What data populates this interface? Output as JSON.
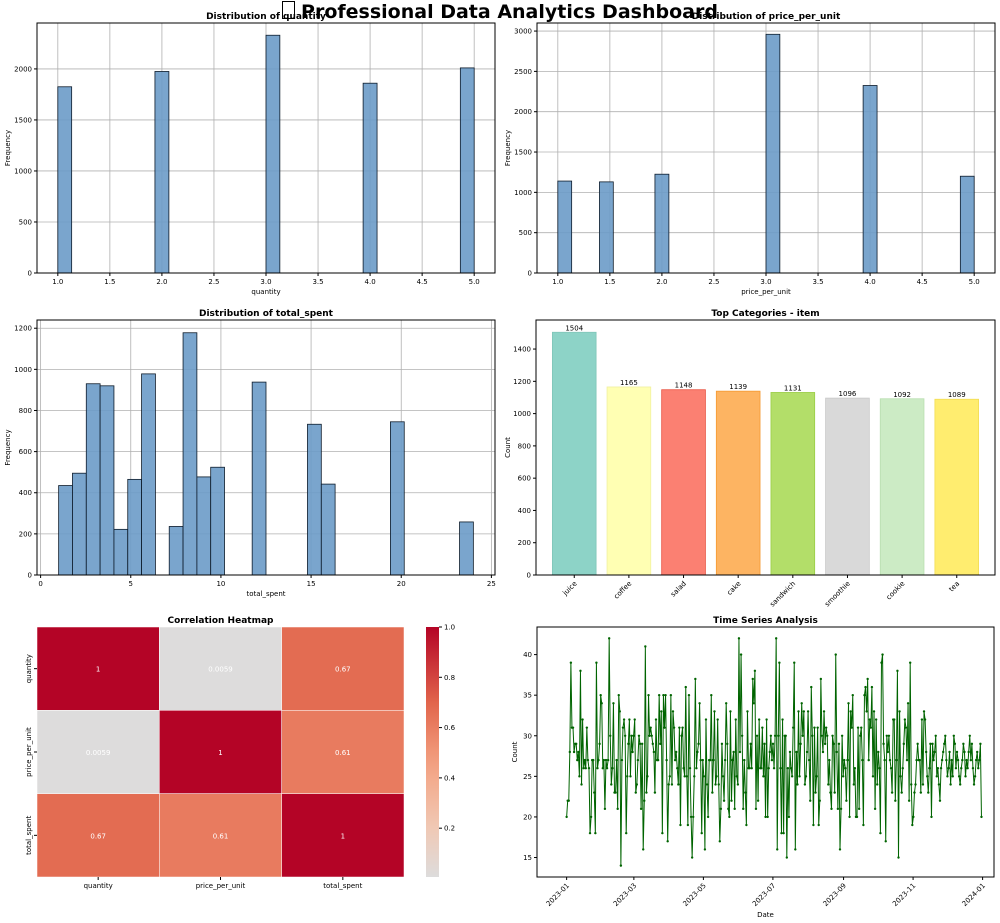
{
  "page": {
    "title": "Professional Data Analytics Dashboard",
    "title_icon": "missing-glyph-icon"
  },
  "chart_data": [
    {
      "id": "quantity-hist",
      "type": "bar",
      "subtype": "histogram",
      "title": "Distribution of quantity",
      "xlabel": "quantity",
      "ylabel": "Frequency",
      "xlim": [
        0.8,
        5.2
      ],
      "ylim": [
        0,
        2450
      ],
      "xticks": [
        1.0,
        1.5,
        2.0,
        2.5,
        3.0,
        3.5,
        4.0,
        4.5,
        5.0
      ],
      "xtick_labels": [
        "1.0",
        "1.5",
        "2.0",
        "2.5",
        "3.0",
        "3.5",
        "4.0",
        "4.5",
        "5.0"
      ],
      "yticks": [
        0,
        500,
        1000,
        1500,
        2000
      ],
      "grid": true,
      "bin_width": 0.1333,
      "bins": [
        {
          "x0": 1.0,
          "x1": 1.133,
          "value": 1825
        },
        {
          "x0": 1.933,
          "x1": 2.067,
          "value": 1975
        },
        {
          "x0": 3.0,
          "x1": 3.133,
          "value": 2330
        },
        {
          "x0": 3.933,
          "x1": 4.067,
          "value": 1860
        },
        {
          "x0": 4.867,
          "x1": 5.0,
          "value": 2010
        }
      ],
      "color": "#6b9bc8"
    },
    {
      "id": "price-hist",
      "type": "bar",
      "subtype": "histogram",
      "title": "Distribution of price_per_unit",
      "xlabel": "price_per_unit",
      "ylabel": "Frequency",
      "xlim": [
        0.8,
        5.2
      ],
      "ylim": [
        0,
        3100
      ],
      "xticks": [
        1.0,
        1.5,
        2.0,
        2.5,
        3.0,
        3.5,
        4.0,
        4.5,
        5.0
      ],
      "xtick_labels": [
        "1.0",
        "1.5",
        "2.0",
        "2.5",
        "3.0",
        "3.5",
        "4.0",
        "4.5",
        "5.0"
      ],
      "yticks": [
        0,
        500,
        1000,
        1500,
        2000,
        2500,
        3000
      ],
      "grid": true,
      "bins": [
        {
          "x0": 1.0,
          "x1": 1.133,
          "value": 1140
        },
        {
          "x0": 1.4,
          "x1": 1.533,
          "value": 1130
        },
        {
          "x0": 1.933,
          "x1": 2.067,
          "value": 1225
        },
        {
          "x0": 3.0,
          "x1": 3.133,
          "value": 2960
        },
        {
          "x0": 3.933,
          "x1": 4.067,
          "value": 2325
        },
        {
          "x0": 4.867,
          "x1": 5.0,
          "value": 1200
        }
      ],
      "color": "#6b9bc8"
    },
    {
      "id": "total-spent-hist",
      "type": "bar",
      "subtype": "histogram",
      "title": "Distribution of total_spent",
      "xlabel": "total_spent",
      "ylabel": "Frequency",
      "xlim": [
        -0.2,
        25.2
      ],
      "ylim": [
        0,
        1240
      ],
      "xticks": [
        0,
        5,
        10,
        15,
        20,
        25
      ],
      "xtick_labels": [
        "0",
        "5",
        "10",
        "15",
        "20",
        "25"
      ],
      "yticks": [
        0,
        200,
        400,
        600,
        800,
        1000,
        1200
      ],
      "grid": true,
      "bins": [
        {
          "x0": 1.0,
          "x1": 1.767,
          "value": 435
        },
        {
          "x0": 1.767,
          "x1": 2.533,
          "value": 495
        },
        {
          "x0": 2.533,
          "x1": 3.3,
          "value": 930
        },
        {
          "x0": 3.3,
          "x1": 4.067,
          "value": 920
        },
        {
          "x0": 4.067,
          "x1": 4.833,
          "value": 222
        },
        {
          "x0": 4.833,
          "x1": 5.6,
          "value": 465
        },
        {
          "x0": 5.6,
          "x1": 6.367,
          "value": 978
        },
        {
          "x0": 7.133,
          "x1": 7.9,
          "value": 236
        },
        {
          "x0": 7.9,
          "x1": 8.667,
          "value": 1178
        },
        {
          "x0": 8.667,
          "x1": 9.433,
          "value": 477
        },
        {
          "x0": 9.433,
          "x1": 10.2,
          "value": 524
        },
        {
          "x0": 11.733,
          "x1": 12.5,
          "value": 938
        },
        {
          "x0": 14.8,
          "x1": 15.567,
          "value": 733
        },
        {
          "x0": 15.567,
          "x1": 16.333,
          "value": 442
        },
        {
          "x0": 19.4,
          "x1": 20.167,
          "value": 745
        },
        {
          "x0": 23.233,
          "x1": 24.0,
          "value": 258
        }
      ],
      "color": "#6b9bc8"
    },
    {
      "id": "top-categories",
      "type": "bar",
      "title": "Top Categories - item",
      "xlabel": "",
      "ylabel": "Count",
      "ylim": [
        0,
        1580
      ],
      "yticks": [
        0,
        200,
        400,
        600,
        800,
        1000,
        1200,
        1400
      ],
      "grid": false,
      "categories": [
        "juice",
        "coffee",
        "salad",
        "cake",
        "sandwich",
        "smoothie",
        "cookie",
        "tea"
      ],
      "values": [
        1504,
        1165,
        1148,
        1139,
        1131,
        1096,
        1092,
        1089
      ],
      "data_labels": [
        "1504",
        "1165",
        "1148",
        "1139",
        "1131",
        "1096",
        "1092",
        "1089"
      ],
      "colors": [
        "#8dd3c7",
        "#ffffb3",
        "#fb8072",
        "#fdb462",
        "#b3de69",
        "#d9d9d9",
        "#ccebc5",
        "#ffed6f"
      ],
      "edge_colors": [
        "#7fc5b8",
        "#f0f0a0",
        "#e8503f",
        "#f59a30",
        "#9acd45",
        "#c8c8c8",
        "#b8deb0",
        "#f2dc55"
      ]
    },
    {
      "id": "correlation-heatmap",
      "type": "heatmap",
      "title": "Correlation Heatmap",
      "x_labels": [
        "quantity",
        "price_per_unit",
        "total_spent"
      ],
      "y_labels": [
        "quantity",
        "price_per_unit",
        "total_spent"
      ],
      "matrix": [
        [
          1,
          0.0059,
          0.67
        ],
        [
          0.0059,
          1,
          0.61
        ],
        [
          0.67,
          0.61,
          1
        ]
      ],
      "annotations": [
        [
          "1",
          "0.0059",
          "0.67"
        ],
        [
          "0.0059",
          "1",
          "0.61"
        ],
        [
          "0.67",
          "0.61",
          "1"
        ]
      ],
      "colorbar": {
        "min": 0.0059,
        "max": 1.0,
        "ticks": [
          0.2,
          0.4,
          0.6,
          0.8,
          1.0
        ],
        "tick_labels": [
          "0.2",
          "0.4",
          "0.6",
          "0.8",
          "1.0"
        ]
      },
      "colormap": "coolwarm-red-half"
    },
    {
      "id": "time-series",
      "type": "line",
      "title": "Time Series Analysis",
      "xlabel": "Date",
      "ylabel": "Count",
      "start_date": "2023-01-01",
      "end_date": "2023-12-31",
      "ylim": [
        12.6,
        43.4
      ],
      "yticks": [
        15,
        20,
        25,
        30,
        35,
        40
      ],
      "xtick_labels": [
        "2023-01",
        "2023-03",
        "2023-05",
        "2023-07",
        "2023-09",
        "2023-11",
        "2024-01"
      ],
      "xtick_dates": [
        "2023-01-01",
        "2023-03-01",
        "2023-05-01",
        "2023-07-01",
        "2023-09-01",
        "2023-11-01",
        "2024-01-01"
      ],
      "color": "#006400",
      "marker": "o",
      "values": [
        20,
        22,
        22,
        28,
        39,
        31,
        31,
        28,
        29,
        29,
        27,
        28,
        25,
        38,
        24,
        32,
        26,
        27,
        26,
        31,
        27,
        26,
        18,
        20,
        27,
        27,
        23,
        18,
        39,
        26,
        27,
        29,
        35,
        34,
        26,
        27,
        21,
        27,
        26,
        27,
        42,
        30,
        24,
        26,
        34,
        23,
        23,
        27,
        21,
        35,
        33,
        14,
        27,
        31,
        32,
        30,
        18,
        25,
        29,
        32,
        25,
        30,
        28,
        30,
        32,
        23,
        24,
        27,
        30,
        29,
        21,
        29,
        16,
        22,
        41,
        23,
        25,
        35,
        30,
        31,
        30,
        29,
        28,
        23,
        32,
        27,
        27,
        35,
        29,
        33,
        18,
        35,
        31,
        35,
        27,
        17,
        24,
        25,
        35,
        24,
        33,
        31,
        27,
        28,
        26,
        24,
        31,
        19,
        30,
        31,
        26,
        25,
        36,
        25,
        19,
        35,
        26,
        20,
        15,
        20,
        25,
        37,
        26,
        28,
        29,
        34,
        27,
        18,
        27,
        25,
        16,
        32,
        24,
        20,
        27,
        27,
        35,
        23,
        27,
        33,
        24,
        25,
        32,
        24,
        17,
        21,
        29,
        25,
        22,
        27,
        34,
        29,
        21,
        20,
        33,
        22,
        27,
        28,
        21,
        32,
        25,
        24,
        42,
        28,
        40,
        30,
        21,
        27,
        23,
        19,
        33,
        26,
        26,
        29,
        26,
        37,
        34,
        38,
        21,
        30,
        22,
        32,
        26,
        26,
        31,
        25,
        29,
        20,
        32,
        20,
        26,
        28,
        30,
        27,
        29,
        26,
        30,
        42,
        16,
        30,
        39,
        26,
        18,
        32,
        18,
        30,
        30,
        15,
        26,
        20,
        28,
        26,
        25,
        31,
        39,
        16,
        28,
        24,
        33,
        25,
        29,
        34,
        30,
        33,
        24,
        25,
        28,
        33,
        27,
        22,
        36,
        30,
        19,
        31,
        23,
        25,
        31,
        19,
        22,
        37,
        30,
        28,
        33,
        29,
        31,
        30,
        24,
        27,
        23,
        21,
        30,
        29,
        23,
        40,
        28,
        21,
        29,
        16,
        21,
        30,
        25,
        27,
        26,
        22,
        27,
        34,
        20,
        33,
        31,
        35,
        24,
        26,
        20,
        20,
        31,
        21,
        30,
        31,
        27,
        19,
        35,
        36,
        33,
        37,
        27,
        32,
        31,
        36,
        25,
        33,
        21,
        32,
        24,
        28,
        26,
        18,
        39,
        40,
        29,
        27,
        17,
        30,
        28,
        30,
        27,
        26,
        23,
        32,
        32,
        22,
        27,
        38,
        15,
        33,
        25,
        23,
        26,
        29,
        32,
        31,
        27,
        34,
        22,
        39,
        24,
        19,
        20,
        23,
        24,
        27,
        29,
        27,
        27,
        23,
        32,
        24,
        33,
        32,
        28,
        25,
        23,
        26,
        29,
        20,
        29,
        27,
        28,
        30,
        25,
        26,
        24,
        22,
        26,
        27,
        28,
        29,
        30,
        27,
        25,
        26,
        28,
        24,
        27,
        25,
        30,
        29,
        26,
        28,
        27,
        25,
        24,
        26,
        27,
        29,
        28,
        25,
        27,
        26,
        28,
        30,
        27,
        29,
        26,
        24,
        25,
        27,
        28,
        26,
        27,
        29,
        20
      ]
    }
  ]
}
